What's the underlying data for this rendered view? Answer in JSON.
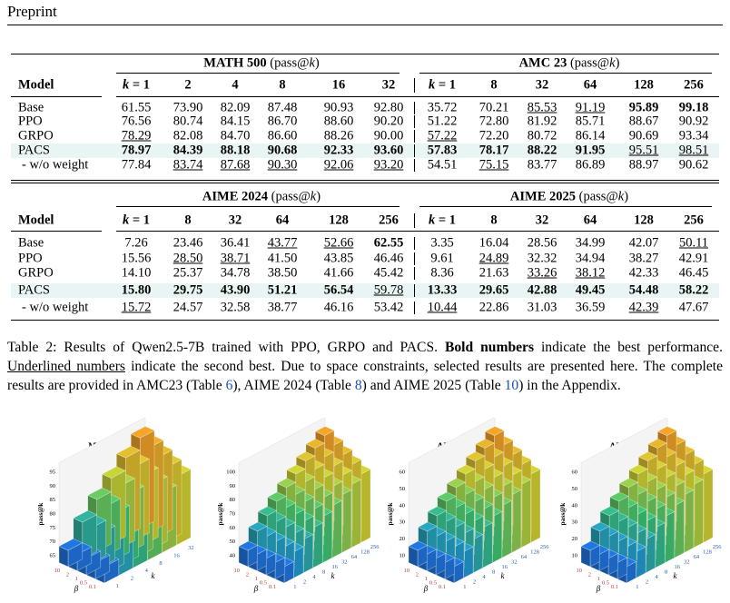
{
  "header": {
    "title": "Preprint"
  },
  "table": {
    "model_header": "Model",
    "blocks": [
      {
        "groups": [
          {
            "name": "MATH 500",
            "metric": "(pass@k)",
            "columns": [
              "k = 1",
              "2",
              "4",
              "8",
              "16",
              "32"
            ]
          },
          {
            "name": "AMC 23",
            "metric": "(pass@k)",
            "columns": [
              "k = 1",
              "8",
              "32",
              "64",
              "128",
              "256"
            ]
          }
        ],
        "rows": [
          {
            "model": "Base",
            "values": [
              "61.55",
              "73.90",
              "82.09",
              "87.48",
              "90.93",
              "92.80",
              "35.72",
              "70.21",
              "85.53",
              "91.19",
              "95.89",
              "99.18"
            ],
            "bold": [
              10,
              11
            ],
            "underline": [
              8,
              9
            ],
            "highlight": false
          },
          {
            "model": "PPO",
            "values": [
              "76.56",
              "80.74",
              "84.15",
              "86.70",
              "88.60",
              "90.20",
              "51.22",
              "72.80",
              "81.92",
              "85.71",
              "88.67",
              "90.92"
            ],
            "bold": [],
            "underline": [],
            "highlight": false
          },
          {
            "model": "GRPO",
            "values": [
              "78.29",
              "82.08",
              "84.70",
              "86.60",
              "88.26",
              "90.00",
              "57.22",
              "72.20",
              "80.72",
              "86.14",
              "90.69",
              "93.34"
            ],
            "bold": [],
            "underline": [
              0,
              6
            ],
            "highlight": false
          },
          {
            "model": "PACS",
            "values": [
              "78.97",
              "84.39",
              "88.18",
              "90.68",
              "92.33",
              "93.60",
              "57.83",
              "78.17",
              "88.22",
              "91.95",
              "95.51",
              "98.51"
            ],
            "bold": [
              0,
              1,
              2,
              3,
              4,
              5,
              6,
              7,
              8,
              9
            ],
            "underline": [
              10,
              11
            ],
            "highlight": true
          },
          {
            "model": "- w/o weight",
            "values": [
              "77.84",
              "83.74",
              "87.68",
              "90.30",
              "92.06",
              "93.20",
              "54.51",
              "75.15",
              "83.77",
              "86.89",
              "88.97",
              "90.62"
            ],
            "bold": [],
            "underline": [
              1,
              2,
              3,
              4,
              5,
              7
            ],
            "highlight": false
          }
        ]
      },
      {
        "groups": [
          {
            "name": "AIME 2024",
            "metric": "(pass@k)",
            "columns": [
              "k = 1",
              "8",
              "32",
              "64",
              "128",
              "256"
            ]
          },
          {
            "name": "AIME 2025",
            "metric": "(pass@k)",
            "columns": [
              "k = 1",
              "8",
              "32",
              "64",
              "128",
              "256"
            ]
          }
        ],
        "rows": [
          {
            "model": "Base",
            "values": [
              "7.26",
              "23.46",
              "36.41",
              "43.77",
              "52.66",
              "62.55",
              "3.35",
              "16.04",
              "28.56",
              "34.99",
              "42.07",
              "50.11"
            ],
            "bold": [
              5
            ],
            "underline": [
              3,
              4,
              11
            ],
            "highlight": false
          },
          {
            "model": "PPO",
            "values": [
              "15.56",
              "28.50",
              "38.71",
              "41.50",
              "43.85",
              "46.46",
              "9.61",
              "24.89",
              "32.32",
              "34.94",
              "38.27",
              "42.91"
            ],
            "bold": [],
            "underline": [
              1,
              2,
              7
            ],
            "highlight": false
          },
          {
            "model": "GRPO",
            "values": [
              "14.10",
              "25.37",
              "34.78",
              "38.50",
              "41.66",
              "45.42",
              "8.36",
              "21.63",
              "33.26",
              "38.12",
              "42.33",
              "46.45"
            ],
            "bold": [],
            "underline": [
              8,
              9
            ],
            "highlight": false
          },
          {
            "model": "PACS",
            "values": [
              "15.80",
              "29.75",
              "43.90",
              "51.21",
              "56.54",
              "59.78",
              "13.33",
              "29.65",
              "42.88",
              "49.45",
              "54.48",
              "58.22"
            ],
            "bold": [
              0,
              1,
              2,
              3,
              4,
              6,
              7,
              8,
              9,
              10,
              11
            ],
            "underline": [
              5
            ],
            "highlight": true
          },
          {
            "model": "- w/o weight",
            "values": [
              "15.72",
              "24.57",
              "32.58",
              "38.77",
              "46.16",
              "53.42",
              "10.44",
              "22.86",
              "31.03",
              "36.59",
              "42.39",
              "47.67"
            ],
            "bold": [],
            "underline": [
              0,
              6,
              10
            ],
            "highlight": false
          }
        ]
      }
    ]
  },
  "caption": {
    "segments": [
      {
        "text": "Table 2: Results of Qwen2.5-7B trained with PPO, GRPO and PACS. ",
        "style": "normal"
      },
      {
        "text": "Bold numbers",
        "style": "bold"
      },
      {
        "text": " indicate the best performance. ",
        "style": "normal"
      },
      {
        "text": "Underlined numbers",
        "style": "underline"
      },
      {
        "text": " indicate the second best. Due to space constraints, selected results are presented here. The complete results are provided in AMC23 (Table ",
        "style": "normal"
      },
      {
        "text": "6",
        "style": "link"
      },
      {
        "text": "), AIME 2024 (Table ",
        "style": "normal"
      },
      {
        "text": "8",
        "style": "link"
      },
      {
        "text": ") and AIME 2025 (Table ",
        "style": "normal"
      },
      {
        "text": "10",
        "style": "link"
      },
      {
        "text": ") in the Appendix.",
        "style": "normal"
      }
    ]
  },
  "figure": {
    "charts": [
      {
        "title": "MATH 500",
        "zlabel": "pass@k",
        "zticks": [
          65,
          70,
          75,
          80,
          85,
          90,
          95
        ],
        "beta_label": "β",
        "beta_ticks": [
          10,
          2,
          1,
          0.5,
          0.1
        ],
        "k_label": "k",
        "k_ticks": [
          1,
          2,
          4,
          8,
          16,
          32
        ]
      },
      {
        "title": "AMC23",
        "zlabel": "pass@k",
        "zticks": [
          40,
          50,
          60,
          70,
          80,
          90,
          100
        ],
        "beta_label": "β",
        "beta_ticks": [
          10,
          2,
          1,
          0.5,
          0.1
        ],
        "k_label": "k",
        "k_ticks": [
          1,
          2,
          4,
          8,
          16,
          32,
          64,
          128,
          256
        ]
      },
      {
        "title": "AIME 2024",
        "zlabel": "pass@k",
        "zticks": [
          10,
          20,
          30,
          40,
          50,
          60
        ],
        "beta_label": "β",
        "beta_ticks": [
          10,
          2,
          1,
          0.5,
          0.1
        ],
        "k_label": "k",
        "k_ticks": [
          1,
          2,
          4,
          8,
          16,
          32,
          64,
          128,
          256
        ]
      },
      {
        "title": "AIME 2025",
        "zlabel": "pass@k",
        "zticks": [
          10,
          20,
          30,
          40,
          50,
          60
        ],
        "beta_label": "β",
        "beta_ticks": [
          10,
          2,
          1,
          0.5,
          0.1
        ],
        "k_label": "k",
        "k_ticks": [
          1,
          2,
          4,
          8,
          16,
          32,
          64,
          128,
          256
        ]
      }
    ]
  }
}
